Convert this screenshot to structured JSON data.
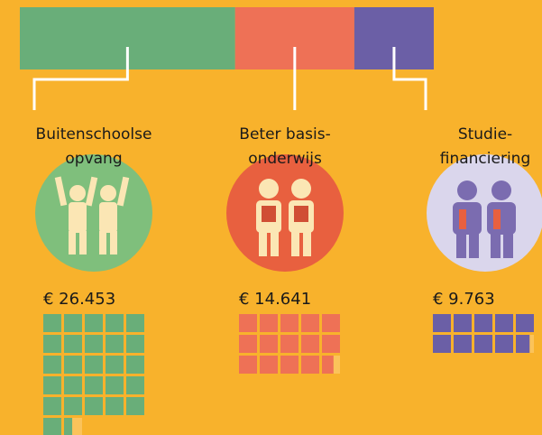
{
  "chart_data": {
    "type": "infographic",
    "categories": [
      "Buitenschoolse\nopvang",
      "Beter basis-\nonderwijs",
      "Studie-\nfinanciering"
    ],
    "values": [
      26453,
      14641,
      9763
    ],
    "value_labels": [
      "€ 26.453",
      "€ 14.641",
      "€ 9.763"
    ],
    "colors": [
      "#69ae79",
      "#ee7156",
      "#6b5fa6"
    ]
  }
}
